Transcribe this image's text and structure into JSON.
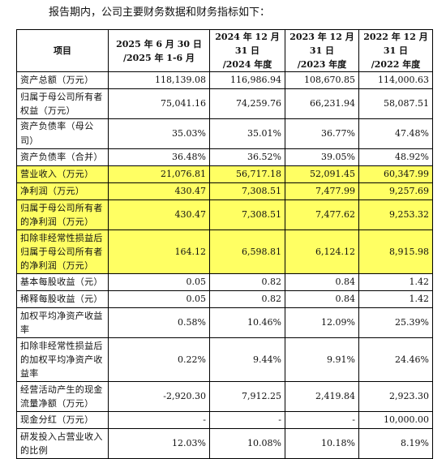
{
  "intro_text": "报告期内，公司主要财务数据和财务指标如下：",
  "table": {
    "headers": [
      [
        "项目"
      ],
      [
        "2025 年 6 月 30 日",
        "/2025 年 1-6 月"
      ],
      [
        "2024 年 12 月 31 日",
        "/2024 年度"
      ],
      [
        "2023 年 12 月 31 日",
        "/2023 年度"
      ],
      [
        "2022 年 12 月 31 日",
        "/2022 年度"
      ]
    ],
    "rows": [
      {
        "label": [
          "资产总额（万元）"
        ],
        "values": [
          "118,139.08",
          "116,986.94",
          "108,670.85",
          "114,000.63"
        ],
        "highlight": false
      },
      {
        "label": [
          "归属于母公司所有者",
          "权益（万元）"
        ],
        "values": [
          "75,041.16",
          "74,259.76",
          "66,231.94",
          "58,087.51"
        ],
        "highlight": false
      },
      {
        "label": [
          "资产负债率（母公司）"
        ],
        "values": [
          "35.03%",
          "35.01%",
          "36.77%",
          "47.48%"
        ],
        "highlight": false
      },
      {
        "label": [
          "资产负债率（合并）"
        ],
        "values": [
          "36.48%",
          "36.52%",
          "39.05%",
          "48.92%"
        ],
        "highlight": false
      },
      {
        "label": [
          "营业收入（万元）"
        ],
        "values": [
          "21,076.81",
          "56,717.18",
          "52,091.45",
          "60,347.99"
        ],
        "highlight": true
      },
      {
        "label": [
          "净利润（万元）"
        ],
        "values": [
          "430.47",
          "7,308.51",
          "7,477.99",
          "9,257.69"
        ],
        "highlight": true
      },
      {
        "label": [
          "归属于母公司所有者",
          "的净利润（万元）"
        ],
        "values": [
          "430.47",
          "7,308.51",
          "7,477.62",
          "9,253.32"
        ],
        "highlight": true
      },
      {
        "label": [
          "扣除非经常性损益后",
          "归属于母公司所有者",
          "的净利润（万元）"
        ],
        "values": [
          "164.12",
          "6,598.81",
          "6,124.12",
          "8,915.98"
        ],
        "highlight": true
      },
      {
        "label": [
          "基本每股收益（元）"
        ],
        "values": [
          "0.05",
          "0.82",
          "0.84",
          "1.42"
        ],
        "highlight": false
      },
      {
        "label": [
          "稀释每股收益（元）"
        ],
        "values": [
          "0.05",
          "0.82",
          "0.84",
          "1.42"
        ],
        "highlight": false
      },
      {
        "label": [
          "加权平均净资产收益",
          "率"
        ],
        "values": [
          "0.58%",
          "10.46%",
          "12.09%",
          "25.39%"
        ],
        "highlight": false
      },
      {
        "label": [
          "扣除非经常性损益后",
          "的加权平均净资产收",
          "益率"
        ],
        "values": [
          "0.22%",
          "9.44%",
          "9.91%",
          "24.46%"
        ],
        "highlight": false
      },
      {
        "label": [
          "经营活动产生的现金",
          "流量净额（万元）"
        ],
        "values": [
          "-2,920.30",
          "7,912.25",
          "2,419.84",
          "2,923.30"
        ],
        "highlight": false
      },
      {
        "label": [
          "现金分红（万元）"
        ],
        "values": [
          "-",
          "-",
          "-",
          "10,000.00"
        ],
        "highlight": false
      },
      {
        "label": [
          "研发投入占营业收入",
          "的比例"
        ],
        "values": [
          "12.03%",
          "10.08%",
          "10.18%",
          "8.19%"
        ],
        "highlight": false
      }
    ]
  },
  "colors": {
    "highlight": "#ffff63",
    "border": "#000000"
  }
}
